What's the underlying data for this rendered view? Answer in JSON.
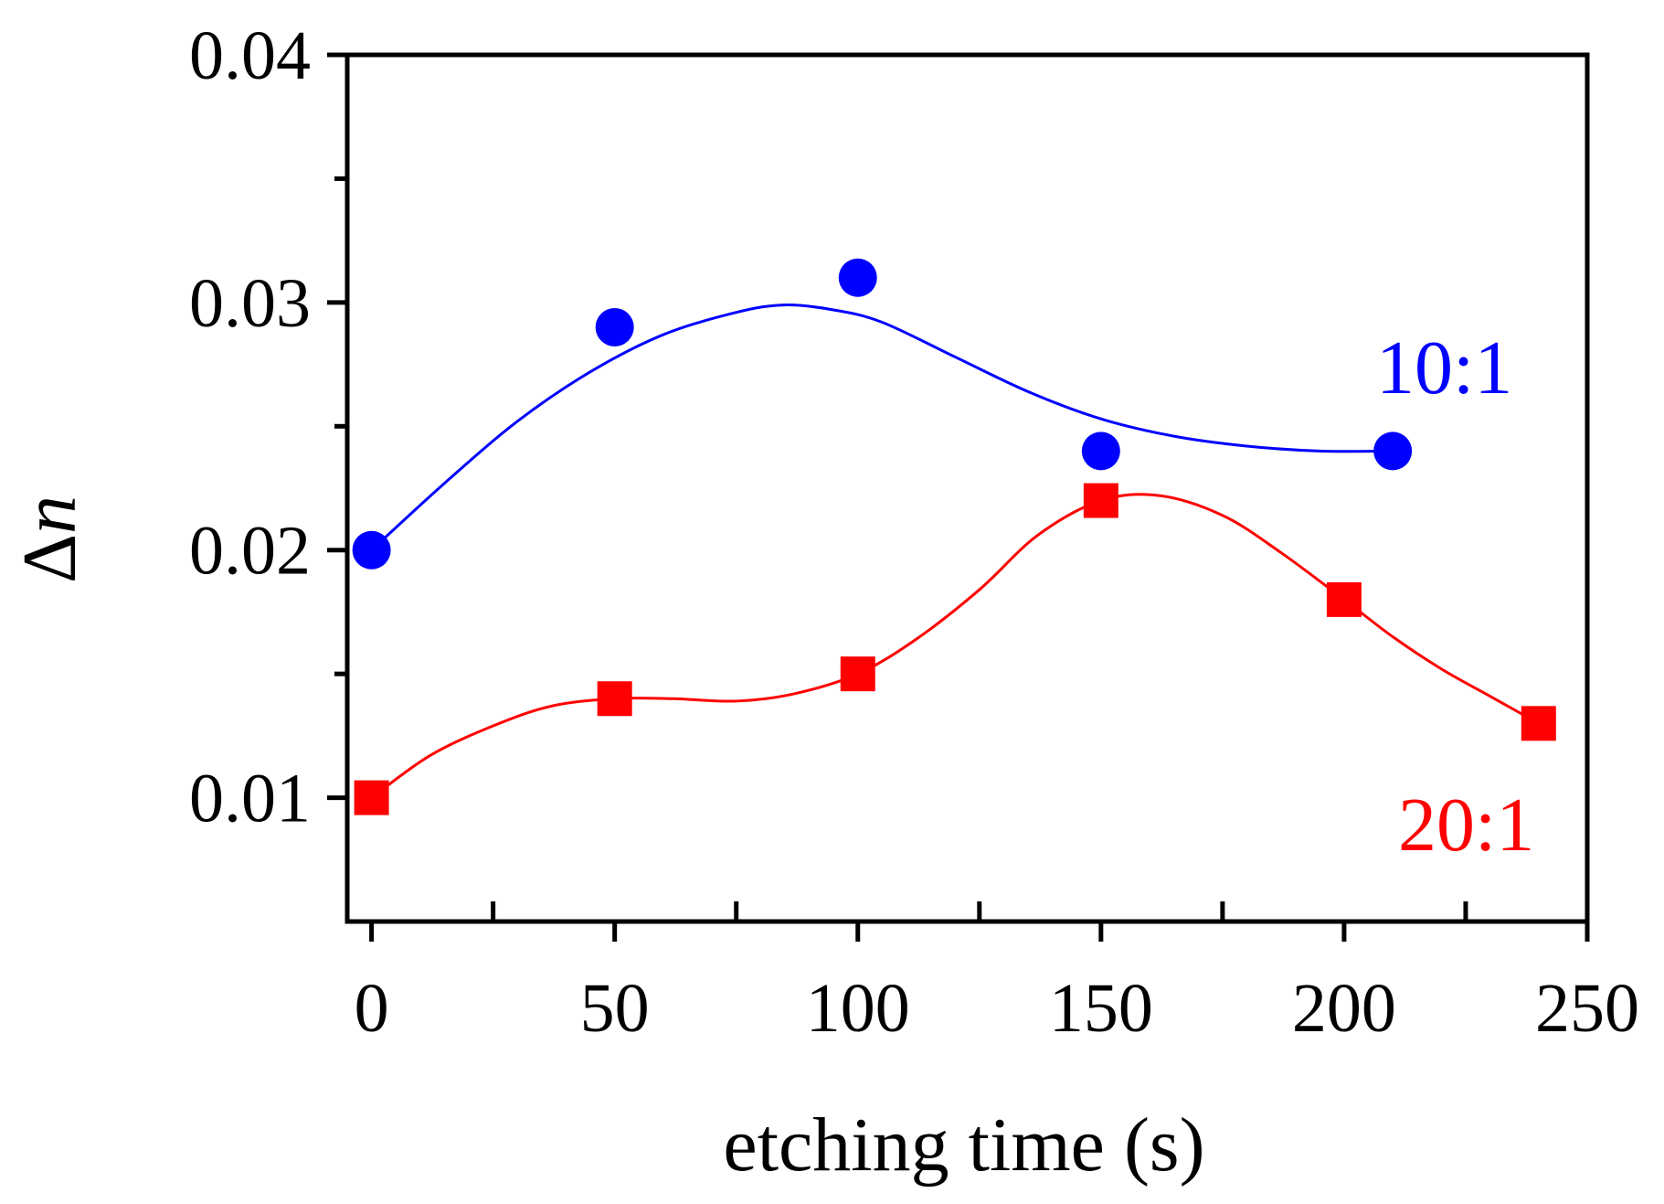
{
  "chart_data": {
    "type": "scatter",
    "title": "",
    "xlabel": "etching time (s)",
    "ylabel_symbol": "Δ",
    "ylabel_var": "n",
    "xlim": [
      -5,
      250
    ],
    "ylim": [
      0.005,
      0.04
    ],
    "xticks": [
      0,
      50,
      100,
      150,
      200,
      250
    ],
    "xtick_labels": [
      "0",
      "50",
      "100",
      "150",
      "200",
      "250"
    ],
    "xminor_ticks": [
      25,
      75,
      125,
      175,
      225
    ],
    "yticks": [
      0.01,
      0.02,
      0.03,
      0.04
    ],
    "ytick_labels": [
      "0.01",
      "0.02",
      "0.03",
      "0.04"
    ],
    "yminor_ticks": [
      0.015,
      0.025,
      0.035
    ],
    "grid": false,
    "series": [
      {
        "name": "10:1",
        "label": "10:1",
        "color": "#0000ff",
        "marker": "circle",
        "x": [
          0,
          50,
          100,
          150,
          210
        ],
        "y": [
          0.02,
          0.029,
          0.031,
          0.024,
          0.024
        ],
        "fit_x": [
          0,
          15,
          30,
          45,
          60,
          75,
          85,
          95,
          105,
          120,
          135,
          150,
          165,
          180,
          195,
          210
        ],
        "fit_y": [
          0.02,
          0.0227,
          0.0252,
          0.0272,
          0.0287,
          0.0296,
          0.0299,
          0.0297,
          0.0292,
          0.0278,
          0.0264,
          0.0253,
          0.0246,
          0.0242,
          0.024,
          0.024
        ]
      },
      {
        "name": "20:1",
        "label": "20:1",
        "color": "#ff0000",
        "marker": "square",
        "x": [
          0,
          50,
          100,
          150,
          200,
          240
        ],
        "y": [
          0.01,
          0.014,
          0.015,
          0.022,
          0.018,
          0.013
        ],
        "fit_x": [
          0,
          12,
          25,
          37,
          50,
          62,
          75,
          87,
          100,
          112,
          125,
          137,
          150,
          162,
          175,
          187,
          200,
          210,
          220,
          230,
          240
        ],
        "fit_y": [
          0.01,
          0.0117,
          0.0129,
          0.0137,
          0.014,
          0.014,
          0.0139,
          0.0142,
          0.015,
          0.0164,
          0.0184,
          0.0206,
          0.022,
          0.0222,
          0.0214,
          0.0199,
          0.018,
          0.0165,
          0.0152,
          0.0141,
          0.013
        ]
      }
    ]
  }
}
